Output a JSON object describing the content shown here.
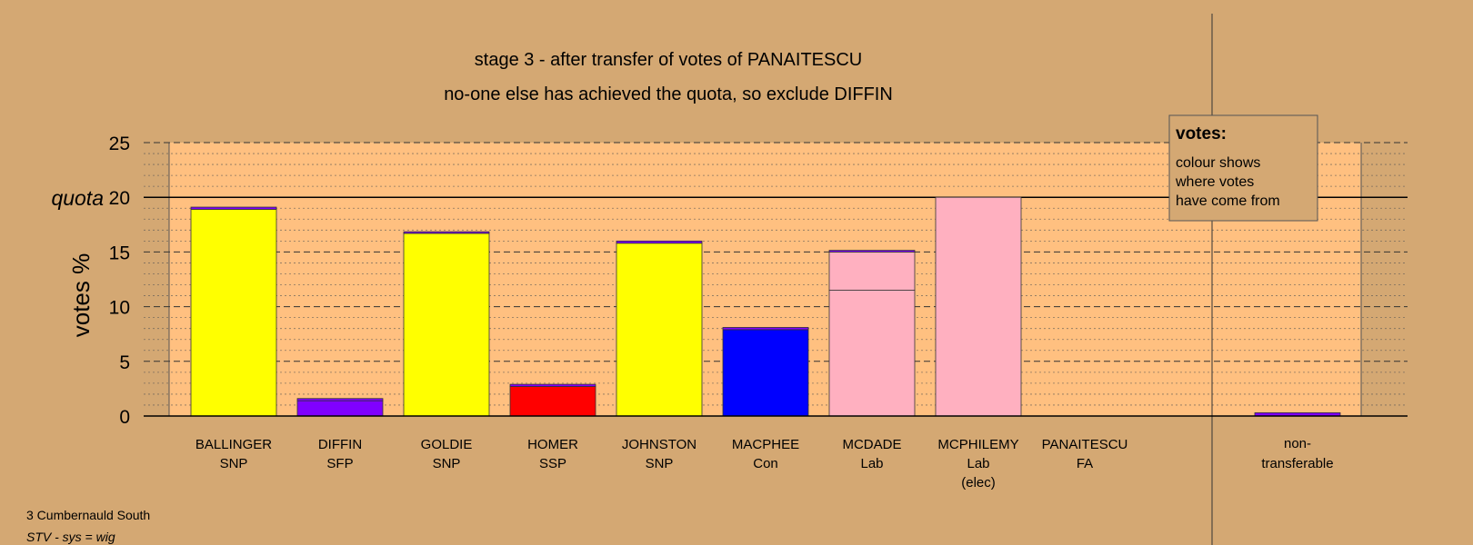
{
  "chart_data": {
    "type": "bar",
    "title": "stage 3 - after transfer of votes of PANAITESCU",
    "subtitle": "no-one else has achieved the quota, so exclude DIFFIN",
    "ylabel": "votes %",
    "ylim": [
      0,
      25
    ],
    "yticks": [
      0,
      5,
      10,
      15,
      20,
      25
    ],
    "quota": 20,
    "quota_label": "quota",
    "grid": true,
    "categories": [
      {
        "name": "BALLINGER",
        "party": "SNP",
        "extra": ""
      },
      {
        "name": "DIFFIN",
        "party": "SFP",
        "extra": ""
      },
      {
        "name": "GOLDIE",
        "party": "SNP",
        "extra": ""
      },
      {
        "name": "HOMER",
        "party": "SSP",
        "extra": ""
      },
      {
        "name": "JOHNSTON",
        "party": "SNP",
        "extra": ""
      },
      {
        "name": "MACPHEE",
        "party": "Con",
        "extra": ""
      },
      {
        "name": "MCDADE",
        "party": "Lab",
        "extra": ""
      },
      {
        "name": "MCPHILEMY",
        "party": "Lab",
        "extra": "(elec)"
      },
      {
        "name": "PANAITESCU",
        "party": "FA",
        "extra": ""
      }
    ],
    "bars": [
      {
        "segments": [
          {
            "value": 18.9,
            "color": "#ffff00"
          },
          {
            "value": 0.2,
            "color": "#8000ff"
          }
        ]
      },
      {
        "segments": [
          {
            "value": 1.4,
            "color": "#8000ff"
          },
          {
            "value": 0.2,
            "color": "#8000ff"
          }
        ]
      },
      {
        "segments": [
          {
            "value": 16.7,
            "color": "#ffff00"
          },
          {
            "value": 0.15,
            "color": "#8000ff"
          }
        ]
      },
      {
        "segments": [
          {
            "value": 2.7,
            "color": "#ff0000"
          },
          {
            "value": 0.2,
            "color": "#8000ff"
          }
        ]
      },
      {
        "segments": [
          {
            "value": 15.8,
            "color": "#ffff00"
          },
          {
            "value": 0.2,
            "color": "#8000ff"
          }
        ]
      },
      {
        "segments": [
          {
            "value": 7.9,
            "color": "#0000ff"
          },
          {
            "value": 0.2,
            "color": "#8000ff"
          }
        ]
      },
      {
        "segments": [
          {
            "value": 11.5,
            "color": "#ffb0c0"
          },
          {
            "value": 3.5,
            "color": "#ffb0c0"
          },
          {
            "value": 0.15,
            "color": "#8000ff"
          }
        ]
      },
      {
        "segments": [
          {
            "value": 20.0,
            "color": "#ffb0c0"
          }
        ]
      },
      {
        "segments": []
      }
    ],
    "nontransferable": {
      "label_line1": "non-",
      "label_line2": "transferable",
      "segments": [
        {
          "value": 0.3,
          "color": "#8000ff"
        }
      ]
    },
    "legend": {
      "title": "votes:",
      "lines": [
        "colour shows",
        "where votes",
        "have come from"
      ],
      "placement": "top-right"
    }
  },
  "footer": {
    "line1": "3 Cumbernauld South",
    "line2": "STV - sys = wig"
  },
  "colors": {
    "background": "#d4a873",
    "plot_area": "#ffc080"
  }
}
